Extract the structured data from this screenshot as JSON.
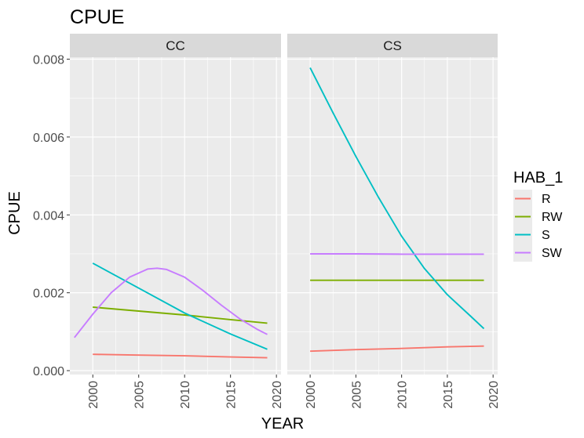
{
  "chart_data": {
    "type": "line",
    "title": "CPUE",
    "xlabel": "YEAR",
    "ylabel": "CPUE",
    "x_ticks": [
      2000,
      2005,
      2010,
      2015,
      2020
    ],
    "y_ticks": [
      "0.000",
      "0.002",
      "0.004",
      "0.006",
      "0.008"
    ],
    "xlim": [
      1997.5,
      2020.5
    ],
    "ylim": [
      -0.0001,
      0.00805
    ],
    "legend": {
      "title": "HAB_1",
      "position": "right",
      "entries": [
        {
          "label": "R",
          "color": "#F8766D"
        },
        {
          "label": "RW",
          "color": "#7CAE00"
        },
        {
          "label": "S",
          "color": "#00BFC4"
        },
        {
          "label": "SW",
          "color": "#C77CFF"
        }
      ]
    },
    "grid": true,
    "panels": [
      {
        "label": "CC",
        "series": [
          {
            "name": "R",
            "color": "#F8766D",
            "x": [
              2000,
              2005,
              2010,
              2015,
              2019
            ],
            "y": [
              0.00042,
              0.0004,
              0.00038,
              0.00035,
              0.00033
            ]
          },
          {
            "name": "RW",
            "color": "#7CAE00",
            "x": [
              2000,
              2005,
              2010,
              2015,
              2019
            ],
            "y": [
              0.00163,
              0.00153,
              0.00143,
              0.00131,
              0.00122
            ]
          },
          {
            "name": "S",
            "color": "#00BFC4",
            "x": [
              2000,
              2005,
              2010,
              2015,
              2019
            ],
            "y": [
              0.00276,
              0.00212,
              0.00148,
              0.00094,
              0.00055
            ]
          },
          {
            "name": "SW",
            "color": "#C77CFF",
            "x": [
              1998,
              2000,
              2002,
              2004,
              2006,
              2007,
              2008,
              2010,
              2012,
              2014,
              2016,
              2018,
              2019
            ],
            "y": [
              0.00085,
              0.00145,
              0.002,
              0.0024,
              0.00261,
              0.00263,
              0.0026,
              0.0024,
              0.00206,
              0.00168,
              0.00133,
              0.00105,
              0.00093
            ]
          }
        ]
      },
      {
        "label": "CS",
        "series": [
          {
            "name": "R",
            "color": "#F8766D",
            "x": [
              2000,
              2005,
              2010,
              2015,
              2019
            ],
            "y": [
              0.0005,
              0.00054,
              0.00057,
              0.00061,
              0.00063
            ]
          },
          {
            "name": "RW",
            "color": "#7CAE00",
            "x": [
              2000,
              2005,
              2010,
              2015,
              2019
            ],
            "y": [
              0.00232,
              0.00232,
              0.00232,
              0.00232,
              0.00232
            ]
          },
          {
            "name": "S",
            "color": "#00BFC4",
            "x": [
              2000,
              2002.5,
              2005,
              2007.5,
              2010,
              2012.5,
              2015,
              2017.5,
              2019
            ],
            "y": [
              0.00778,
              0.00662,
              0.0055,
              0.00444,
              0.00345,
              0.00262,
              0.00195,
              0.00141,
              0.00108
            ]
          },
          {
            "name": "SW",
            "color": "#C77CFF",
            "x": [
              2000,
              2005,
              2010,
              2015,
              2019
            ],
            "y": [
              0.003,
              0.003,
              0.00299,
              0.00299,
              0.00299
            ]
          }
        ]
      }
    ]
  }
}
